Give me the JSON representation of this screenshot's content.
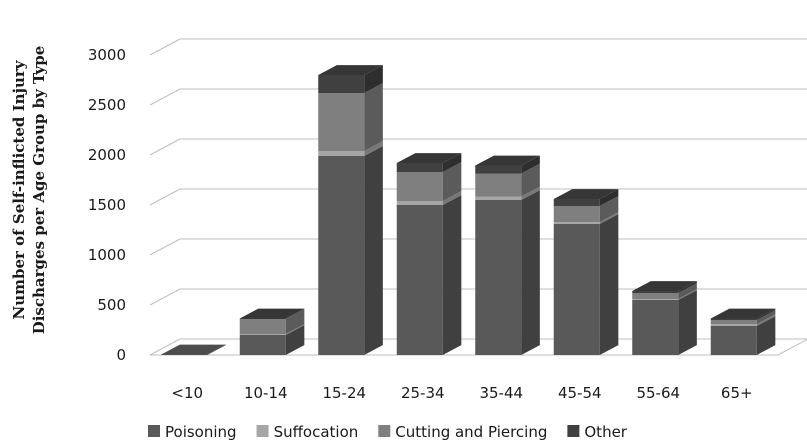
{
  "chart_data": {
    "type": "bar",
    "stacked": true,
    "style": "3d",
    "title": "",
    "xlabel": "",
    "ylabel_lines": [
      "Number of Self-inflicted Injury",
      "Discharges per Age Group by Type"
    ],
    "ylim": [
      0,
      3000
    ],
    "yticks": [
      0,
      500,
      1000,
      1500,
      2000,
      2500,
      3000
    ],
    "grid": true,
    "legend_position": "bottom",
    "categories": [
      "<10",
      "10-14",
      "15-24",
      "25-34",
      "35-44",
      "45-54",
      "55-64",
      "65+"
    ],
    "series": [
      {
        "name": "Poisoning",
        "color": "#595959",
        "values": [
          5,
          200,
          1990,
          1500,
          1550,
          1310,
          550,
          290
        ]
      },
      {
        "name": "Suffocation",
        "color": "#a6a6a6",
        "values": [
          0,
          10,
          50,
          40,
          35,
          20,
          10,
          20
        ]
      },
      {
        "name": "Cutting and Piercing",
        "color": "#7f7f7f",
        "values": [
          0,
          150,
          580,
          290,
          230,
          160,
          60,
          40
        ]
      },
      {
        "name": "Other",
        "color": "#404040",
        "values": [
          0,
          5,
          180,
          90,
          80,
          70,
          20,
          15
        ]
      }
    ]
  }
}
